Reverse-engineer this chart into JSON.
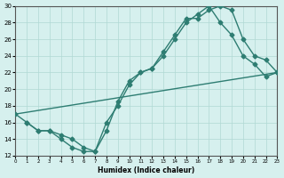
{
  "xlabel": "Humidex (Indice chaleur)",
  "ylabel": "",
  "xlim": [
    0,
    23
  ],
  "ylim": [
    12,
    30
  ],
  "xticks": [
    0,
    1,
    2,
    3,
    4,
    5,
    6,
    7,
    8,
    9,
    10,
    11,
    12,
    13,
    14,
    15,
    16,
    17,
    18,
    19,
    20,
    21,
    22,
    23
  ],
  "yticks": [
    12,
    14,
    16,
    18,
    20,
    22,
    24,
    26,
    28,
    30
  ],
  "background_color": "#d6f0ee",
  "line_color": "#2e7d72",
  "grid_color": "#b0d8d4",
  "curve1_x": [
    0,
    1,
    2,
    3,
    4,
    5,
    6,
    7,
    8,
    9,
    10,
    11,
    12,
    13,
    14,
    15,
    16,
    17,
    18,
    19,
    20,
    21,
    22,
    23
  ],
  "curve1_y": [
    17,
    16,
    15,
    15,
    14,
    13,
    12.5,
    12.5,
    16,
    18,
    20.5,
    22,
    22.5,
    24.5,
    26.5,
    28.5,
    28.5,
    29.5,
    30,
    29.5,
    26,
    24,
    23.5,
    22
  ],
  "curve2_x": [
    1,
    2,
    3,
    4,
    5,
    6,
    7,
    8,
    9,
    10,
    11,
    12,
    13,
    14,
    15,
    16,
    17,
    18,
    19,
    20,
    21,
    22,
    23
  ],
  "curve2_y": [
    16,
    15,
    15,
    14.5,
    14,
    13,
    12.5,
    15,
    18.5,
    21,
    22,
    22.5,
    24,
    26,
    28,
    29,
    30,
    28,
    26.5,
    24,
    23,
    21.5,
    22
  ],
  "curve3_x": [
    0,
    23
  ],
  "curve3_y": [
    17,
    22
  ]
}
